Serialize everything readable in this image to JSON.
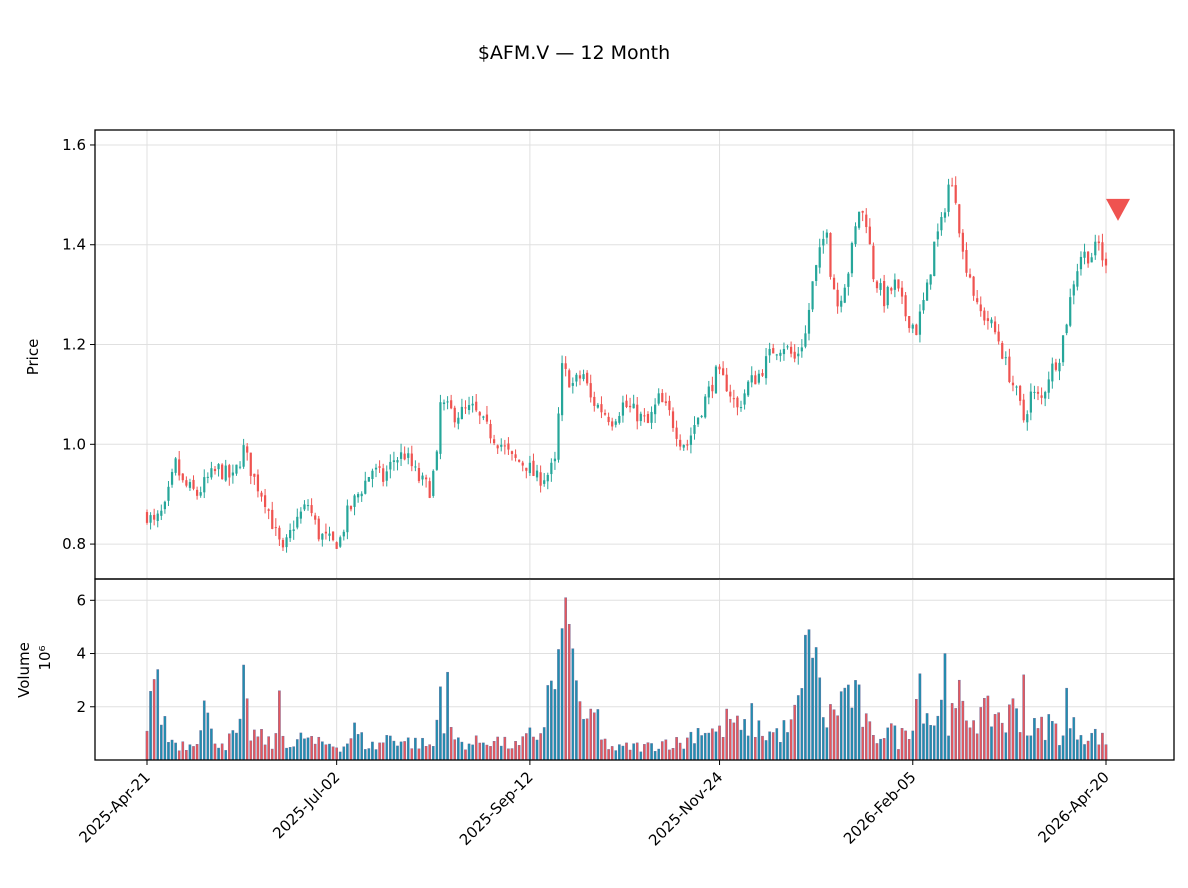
{
  "chart_data": {
    "type": "candlestick",
    "title": "$AFM.V — 12 Month",
    "price_panel": {
      "ylabel": "Price",
      "ylim": [
        0.73,
        1.63
      ],
      "yticks": [
        0.8,
        1.0,
        1.2,
        1.4,
        1.6
      ],
      "ytick_labels": [
        "0.8",
        "1.0",
        "1.2",
        "1.4",
        "1.6"
      ],
      "grid": true,
      "up_color": "#26a69a",
      "down_color": "#ef5350"
    },
    "volume_panel": {
      "ylabel": "Volume",
      "scale_label": "10⁶",
      "ylim": [
        0,
        6.8
      ],
      "yticks": [
        2,
        4,
        6
      ],
      "ytick_labels": [
        "2",
        "4",
        "6"
      ],
      "grid": true,
      "bar_up_color": "#1f8fb0",
      "bar_down_color": "#e8575c"
    },
    "x_tick_labels": [
      "2025-Apr-21",
      "2025-Jul-02",
      "2025-Sep-12",
      "2025-Nov-24",
      "2026-Feb-05",
      "2026-Apr-20"
    ],
    "marker": {
      "shape": "triangle-down",
      "color": "#ef5350",
      "price": 1.47,
      "label": ""
    },
    "ohlc_anchors": [
      [
        0,
        0.86
      ],
      [
        2,
        0.84
      ],
      [
        5,
        0.87
      ],
      [
        8,
        0.96
      ],
      [
        10,
        0.92
      ],
      [
        14,
        0.9
      ],
      [
        17,
        0.93
      ],
      [
        20,
        0.95
      ],
      [
        24,
        0.93
      ],
      [
        27,
        0.99
      ],
      [
        30,
        0.93
      ],
      [
        33,
        0.89
      ],
      [
        36,
        0.82
      ],
      [
        38,
        0.78
      ],
      [
        41,
        0.84
      ],
      [
        45,
        0.88
      ],
      [
        48,
        0.82
      ],
      [
        52,
        0.8
      ],
      [
        54,
        0.81
      ],
      [
        56,
        0.86
      ],
      [
        59,
        0.9
      ],
      [
        63,
        0.95
      ],
      [
        66,
        0.93
      ],
      [
        69,
        0.97
      ],
      [
        72,
        0.98
      ],
      [
        76,
        0.93
      ],
      [
        79,
        0.91
      ],
      [
        81,
        0.97
      ],
      [
        82,
        1.08
      ],
      [
        86,
        1.06
      ],
      [
        91,
        1.07
      ],
      [
        95,
        1.03
      ],
      [
        99,
        1.0
      ],
      [
        102,
        0.97
      ],
      [
        106,
        0.96
      ],
      [
        109,
        0.93
      ],
      [
        112,
        0.94
      ],
      [
        114,
        0.96
      ],
      [
        116,
        1.15
      ],
      [
        119,
        1.12
      ],
      [
        122,
        1.14
      ],
      [
        124,
        1.09
      ],
      [
        127,
        1.07
      ],
      [
        130,
        1.05
      ],
      [
        133,
        1.08
      ],
      [
        137,
        1.06
      ],
      [
        140,
        1.04
      ],
      [
        143,
        1.09
      ],
      [
        146,
        1.06
      ],
      [
        149,
        1.01
      ],
      [
        151,
        1.0
      ],
      [
        153,
        1.04
      ],
      [
        156,
        1.09
      ],
      [
        159,
        1.14
      ],
      [
        162,
        1.12
      ],
      [
        165,
        1.07
      ],
      [
        168,
        1.12
      ],
      [
        171,
        1.14
      ],
      [
        175,
        1.19
      ],
      [
        178,
        1.2
      ],
      [
        181,
        1.17
      ],
      [
        184,
        1.22
      ],
      [
        186,
        1.32
      ],
      [
        188,
        1.38
      ],
      [
        190,
        1.44
      ],
      [
        191,
        1.35
      ],
      [
        193,
        1.28
      ],
      [
        196,
        1.35
      ],
      [
        199,
        1.47
      ],
      [
        201,
        1.45
      ],
      [
        203,
        1.34
      ],
      [
        206,
        1.29
      ],
      [
        209,
        1.32
      ],
      [
        212,
        1.26
      ],
      [
        215,
        1.23
      ],
      [
        218,
        1.31
      ],
      [
        220,
        1.4
      ],
      [
        222,
        1.44
      ],
      [
        224,
        1.52
      ],
      [
        226,
        1.5
      ],
      [
        228,
        1.38
      ],
      [
        230,
        1.34
      ],
      [
        232,
        1.27
      ],
      [
        235,
        1.25
      ],
      [
        238,
        1.21
      ],
      [
        240,
        1.16
      ],
      [
        243,
        1.1
      ],
      [
        245,
        1.05
      ],
      [
        247,
        1.1
      ],
      [
        250,
        1.09
      ],
      [
        252,
        1.14
      ],
      [
        255,
        1.18
      ],
      [
        257,
        1.25
      ],
      [
        259,
        1.33
      ],
      [
        261,
        1.38
      ],
      [
        264,
        1.38
      ],
      [
        266,
        1.4
      ],
      [
        268,
        1.35
      ]
    ],
    "volume_anchors": [
      [
        0,
        1.7
      ],
      [
        2,
        3.3
      ],
      [
        4,
        1.9
      ],
      [
        6,
        0.8
      ],
      [
        9,
        0.6
      ],
      [
        12,
        0.6
      ],
      [
        14,
        1.0
      ],
      [
        16,
        2.1
      ],
      [
        18,
        0.9
      ],
      [
        22,
        0.6
      ],
      [
        26,
        1.1
      ],
      [
        27,
        2.5
      ],
      [
        29,
        1.0
      ],
      [
        32,
        0.8
      ],
      [
        35,
        0.6
      ],
      [
        38,
        0.9
      ],
      [
        41,
        0.5
      ],
      [
        44,
        0.9
      ],
      [
        47,
        0.6
      ],
      [
        51,
        0.6
      ],
      [
        55,
        0.5
      ],
      [
        58,
        1.1
      ],
      [
        61,
        0.6
      ],
      [
        64,
        0.5
      ],
      [
        68,
        0.9
      ],
      [
        72,
        0.7
      ],
      [
        77,
        0.6
      ],
      [
        80,
        0.5
      ],
      [
        82,
        2.6
      ],
      [
        84,
        1.0
      ],
      [
        87,
        0.7
      ],
      [
        91,
        0.6
      ],
      [
        96,
        0.8
      ],
      [
        100,
        0.6
      ],
      [
        104,
        0.5
      ],
      [
        107,
        0.9
      ],
      [
        110,
        1.0
      ],
      [
        112,
        2.3
      ],
      [
        115,
        3.3
      ],
      [
        117,
        6.0
      ],
      [
        119,
        3.2
      ],
      [
        121,
        2.0
      ],
      [
        124,
        1.5
      ],
      [
        127,
        0.7
      ],
      [
        131,
        0.4
      ],
      [
        135,
        0.5
      ],
      [
        140,
        0.5
      ],
      [
        145,
        0.7
      ],
      [
        150,
        0.6
      ],
      [
        153,
        1.1
      ],
      [
        156,
        1.2
      ],
      [
        160,
        1.0
      ],
      [
        163,
        1.6
      ],
      [
        166,
        1.0
      ],
      [
        169,
        1.5
      ],
      [
        172,
        1.0
      ],
      [
        176,
        1.0
      ],
      [
        180,
        1.2
      ],
      [
        183,
        2.5
      ],
      [
        185,
        4.5
      ],
      [
        187,
        3.2
      ],
      [
        190,
        1.4
      ],
      [
        193,
        2.1
      ],
      [
        196,
        2.6
      ],
      [
        199,
        2.0
      ],
      [
        203,
        0.7
      ],
      [
        207,
        1.4
      ],
      [
        210,
        0.7
      ],
      [
        213,
        1.3
      ],
      [
        216,
        3.0
      ],
      [
        219,
        1.4
      ],
      [
        222,
        1.9
      ],
      [
        225,
        1.5
      ],
      [
        228,
        1.6
      ],
      [
        231,
        1.7
      ],
      [
        234,
        1.6
      ],
      [
        237,
        1.8
      ],
      [
        240,
        1.4
      ],
      [
        243,
        2.1
      ],
      [
        246,
        1.2
      ],
      [
        249,
        1.1
      ],
      [
        252,
        1.4
      ],
      [
        255,
        1.0
      ],
      [
        258,
        1.2
      ],
      [
        261,
        1.1
      ],
      [
        264,
        0.9
      ],
      [
        266,
        0.9
      ],
      [
        268,
        0.6
      ]
    ],
    "volume_spikes": [
      [
        3,
        3.4
      ],
      [
        37,
        2.6
      ],
      [
        84,
        3.3
      ],
      [
        117,
        6.1
      ],
      [
        118,
        5.1
      ],
      [
        126,
        1.9
      ],
      [
        185,
        4.9
      ],
      [
        223,
        4.0
      ],
      [
        227,
        3.0
      ],
      [
        245,
        3.2
      ],
      [
        257,
        2.7
      ]
    ],
    "n_bars": 269,
    "x_ticks_index": [
      0,
      53,
      107,
      160,
      214,
      268
    ]
  }
}
